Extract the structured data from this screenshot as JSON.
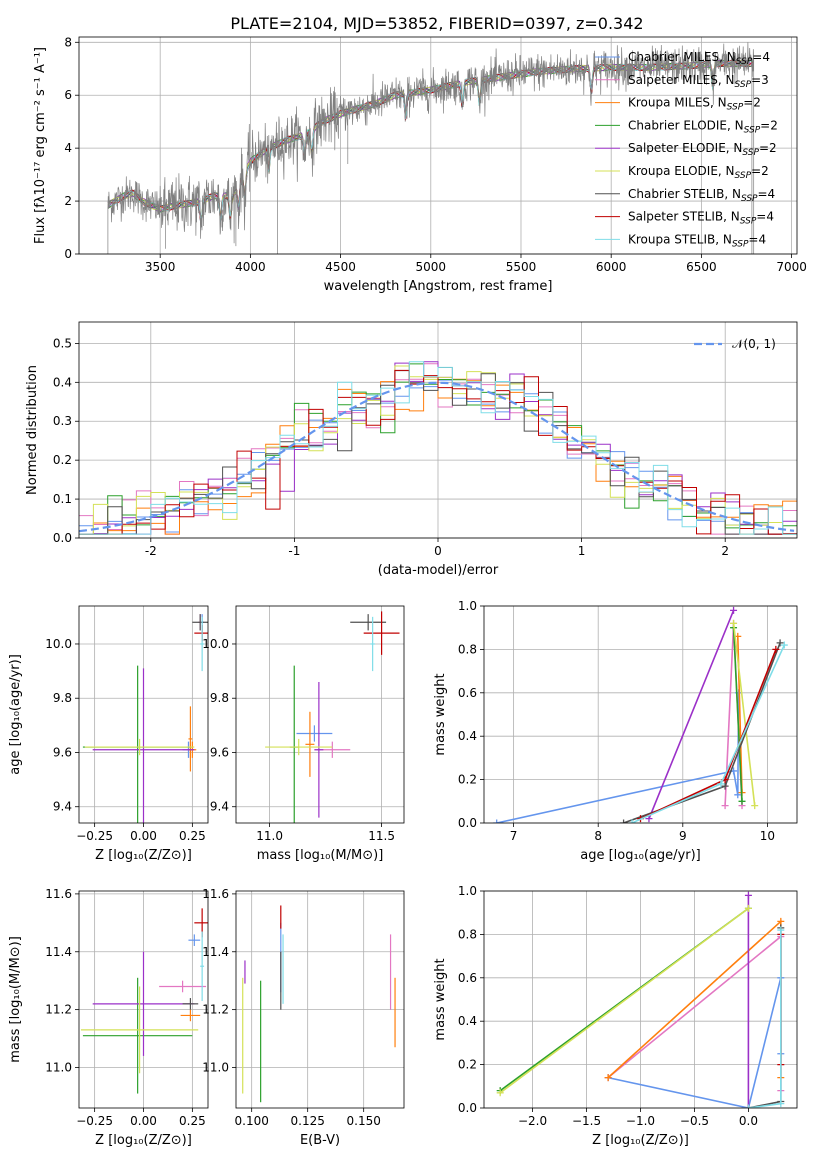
{
  "figure_title": "PLATE=2104, MJD=53852, FIBERID=0397, z=0.342",
  "models": [
    {
      "imf": "Chabrier",
      "lib": "MILES",
      "n": "4",
      "color": "#6495ed"
    },
    {
      "imf": "Salpeter",
      "lib": "MILES",
      "n": "3",
      "color": "#e377c2"
    },
    {
      "imf": "Kroupa",
      "lib": "MILES",
      "n": "2",
      "color": "#ff7f0e"
    },
    {
      "imf": "Chabrier",
      "lib": "ELODIE",
      "n": "2",
      "color": "#2ca02c"
    },
    {
      "imf": "Salpeter",
      "lib": "ELODIE",
      "n": "2",
      "color": "#9b30c8"
    },
    {
      "imf": "Kroupa",
      "lib": "ELODIE",
      "n": "2",
      "color": "#d4e157"
    },
    {
      "imf": "Chabrier",
      "lib": "STELIB",
      "n": "4",
      "color": "#505050"
    },
    {
      "imf": "Salpeter",
      "lib": "STELIB",
      "n": "4",
      "color": "#c00000"
    },
    {
      "imf": "Kroupa",
      "lib": "STELIB",
      "n": "4",
      "color": "#7fdde8"
    }
  ],
  "chart_data": [
    {
      "id": "spectrum",
      "type": "line",
      "xlabel": "wavelength [Angstrom, rest frame]",
      "ylabel": "Flux [fλ10⁻¹⁷ erg cm⁻² s⁻¹ A⁻¹]",
      "xlim": [
        3050,
        7030
      ],
      "ylim": [
        0,
        8.2
      ],
      "xticks": [
        3500,
        4000,
        4500,
        5000,
        5500,
        6000,
        6500,
        7000
      ],
      "yticks": [
        0,
        2,
        4,
        6,
        8
      ],
      "data_color": "#808080",
      "wave_range": [
        3210,
        6790
      ],
      "continuum": {
        "x": [
          3200,
          3300,
          3350,
          3400,
          3500,
          3600,
          3700,
          3800,
          3900,
          3950,
          4000,
          4100,
          4200,
          4300,
          4400,
          4500,
          4600,
          4700,
          4800,
          4900,
          5000,
          5200,
          5400,
          5600,
          5800,
          6000,
          6200,
          6400,
          6600,
          6800
        ],
        "y": [
          1.8,
          2.2,
          2.3,
          2.0,
          1.7,
          1.85,
          1.95,
          2.2,
          2.2,
          2.8,
          3.5,
          4.0,
          4.3,
          4.5,
          5.0,
          5.3,
          5.5,
          5.7,
          6.0,
          6.1,
          6.2,
          6.5,
          6.7,
          6.9,
          7.0,
          7.05,
          7.05,
          7.1,
          7.2,
          7.2
        ]
      }
    },
    {
      "id": "residuals",
      "type": "line",
      "xlabel": "(data-model)/error",
      "ylabel": "Normed distribution",
      "xlim": [
        -2.5,
        2.5
      ],
      "ylim": [
        0,
        0.555
      ],
      "xticks": [
        -2,
        -1,
        0,
        1,
        2
      ],
      "yticks": [
        0.0,
        0.1,
        0.2,
        0.3,
        0.4,
        0.5
      ],
      "bin_width": 0.1,
      "gaussian_label": "𝒩(0, 1)",
      "gaussian_color": "#6495ed"
    },
    {
      "id": "age-vs-z",
      "type": "scatter",
      "xlabel": "Z [log₁₀(Z/Z⊙)]",
      "ylabel": "age  [log₁₀(age/yr)]",
      "xlim": [
        -0.33,
        0.33
      ],
      "ylim": [
        9.34,
        10.14
      ],
      "xticks": [
        -0.25,
        0.0,
        0.25
      ],
      "xticklabels": [
        "−0.25",
        "0.00",
        "0.25"
      ],
      "yticks": [
        9.4,
        9.6,
        9.8,
        10.0
      ],
      "points": [
        {
          "x": 0.3,
          "y": 10.08,
          "xerr": 0.01,
          "yerr": 0.03,
          "m": 0
        },
        {
          "x": 0.23,
          "y": 9.61,
          "xerr": 0.03,
          "yerr": 0.03,
          "m": 0
        },
        {
          "x": 0.29,
          "y": 10.08,
          "xerr": 0.01,
          "yerr": 0.03,
          "m": 1
        },
        {
          "x": 0.24,
          "y": 9.61,
          "xerr": 0.02,
          "yerr": 0.03,
          "m": 1
        },
        {
          "x": 0.24,
          "y": 9.65,
          "xerr": 0.01,
          "yerr": 0.12,
          "m": 2
        },
        {
          "x": 0.25,
          "y": 9.61,
          "xerr": 0.02,
          "yerr": 0.03,
          "m": 2
        },
        {
          "x": -0.03,
          "y": 9.62,
          "xerr": 0.28,
          "yerr": 0.3,
          "m": 3
        },
        {
          "x": 0.0,
          "y": 9.61,
          "xerr": 0.26,
          "yerr": 0.3,
          "m": 4
        },
        {
          "x": -0.02,
          "y": 9.62,
          "xerr": 0.28,
          "yerr": 0.03,
          "m": 5
        },
        {
          "x": 0.29,
          "y": 10.08,
          "xerr": 0.04,
          "yerr": 0.03,
          "m": 6
        },
        {
          "x": 0.3,
          "y": 10.04,
          "xerr": 0.04,
          "yerr": 0.03,
          "m": 7
        },
        {
          "x": 0.3,
          "y": 10.0,
          "xerr": 0.01,
          "yerr": 0.1,
          "m": 8
        }
      ]
    },
    {
      "id": "age-vs-mass",
      "type": "scatter",
      "xlabel": "mass [log₁₀(M/M⊙)]",
      "ylabel": "",
      "xlim": [
        10.85,
        11.6
      ],
      "ylim": [
        9.34,
        10.14
      ],
      "xticks": [
        11.0,
        11.5
      ],
      "xticklabels": [
        "11.0",
        "11.5"
      ],
      "yticks": [
        9.4,
        9.6,
        9.8,
        10.0
      ],
      "points": [
        {
          "x": 11.2,
          "y": 9.67,
          "xerr": 0.08,
          "yerr": 0.03,
          "m": 0
        },
        {
          "x": 11.28,
          "y": 9.61,
          "xerr": 0.08,
          "yerr": 0.03,
          "m": 1
        },
        {
          "x": 11.18,
          "y": 9.63,
          "xerr": 0.02,
          "yerr": 0.12,
          "m": 2
        },
        {
          "x": 11.11,
          "y": 9.62,
          "xerr": 0.02,
          "yerr": 0.3,
          "m": 3
        },
        {
          "x": 11.22,
          "y": 9.61,
          "xerr": 0.02,
          "yerr": 0.25,
          "m": 4
        },
        {
          "x": 11.13,
          "y": 9.62,
          "xerr": 0.15,
          "yerr": 0.03,
          "m": 5
        },
        {
          "x": 11.44,
          "y": 10.08,
          "xerr": 0.08,
          "yerr": 0.03,
          "m": 6
        },
        {
          "x": 11.5,
          "y": 10.04,
          "xerr": 0.08,
          "yerr": 0.08,
          "m": 7
        },
        {
          "x": 11.46,
          "y": 10.0,
          "xerr": 0.01,
          "yerr": 0.1,
          "m": 8
        }
      ]
    },
    {
      "id": "massweight-vs-age",
      "type": "line",
      "xlabel": "age  [log₁₀(age/yr)]",
      "ylabel": "mass weight",
      "xlim": [
        6.65,
        10.35
      ],
      "ylim": [
        0,
        1.0
      ],
      "xticks": [
        7,
        8,
        9,
        10
      ],
      "xticklabels": [
        "7",
        "8",
        "9",
        "10"
      ],
      "yticks": [
        0.0,
        0.2,
        0.4,
        0.6,
        0.8,
        1.0
      ],
      "series": [
        {
          "m": 0,
          "x": [
            6.8,
            9.6,
            9.65,
            9.66
          ],
          "y": [
            0.0,
            0.24,
            0.13,
            0.6
          ]
        },
        {
          "m": 1,
          "x": [
            9.5,
            9.6,
            9.7
          ],
          "y": [
            0.08,
            0.92,
            0.08
          ]
        },
        {
          "m": 2,
          "x": [
            9.65,
            9.7
          ],
          "y": [
            0.86,
            0.14
          ]
        },
        {
          "m": 3,
          "x": [
            9.6,
            9.7
          ],
          "y": [
            0.9,
            0.1
          ]
        },
        {
          "m": 4,
          "x": [
            8.6,
            9.6
          ],
          "y": [
            0.02,
            0.98
          ]
        },
        {
          "m": 5,
          "x": [
            9.6,
            9.85
          ],
          "y": [
            0.92,
            0.08
          ]
        },
        {
          "m": 6,
          "x": [
            8.3,
            9.5,
            10.15
          ],
          "y": [
            0.0,
            0.17,
            0.83
          ]
        },
        {
          "m": 7,
          "x": [
            8.5,
            9.5,
            10.1
          ],
          "y": [
            0.02,
            0.2,
            0.8
          ]
        },
        {
          "m": 8,
          "x": [
            8.4,
            9.45,
            10.2
          ],
          "y": [
            0.0,
            0.18,
            0.82
          ]
        }
      ]
    },
    {
      "id": "mass-vs-z",
      "type": "scatter",
      "xlabel": "Z [log₁₀(Z/Z⊙)]",
      "ylabel": "mass [log₁₀(M/M⊙)]",
      "xlim": [
        -0.33,
        0.33
      ],
      "ylim": [
        10.86,
        11.61
      ],
      "xticks": [
        -0.25,
        0.0,
        0.25
      ],
      "xticklabels": [
        "−0.25",
        "0.00",
        "0.25"
      ],
      "yticks": [
        11.0,
        11.2,
        11.4,
        11.6
      ],
      "points": [
        {
          "x": 0.26,
          "y": 11.44,
          "xerr": 0.03,
          "yerr": 0.02,
          "m": 0
        },
        {
          "x": 0.2,
          "y": 11.28,
          "xerr": 0.12,
          "yerr": 0.02,
          "m": 1
        },
        {
          "x": 0.24,
          "y": 11.18,
          "xerr": 0.05,
          "yerr": 0.02,
          "m": 2
        },
        {
          "x": -0.03,
          "y": 11.11,
          "xerr": 0.28,
          "yerr": 0.2,
          "m": 3
        },
        {
          "x": 0.0,
          "y": 11.22,
          "xerr": 0.26,
          "yerr": 0.18,
          "m": 4
        },
        {
          "x": -0.02,
          "y": 11.13,
          "xerr": 0.3,
          "yerr": 0.15,
          "m": 5
        },
        {
          "x": 0.24,
          "y": 11.22,
          "xerr": 0.04,
          "yerr": 0.02,
          "m": 6
        },
        {
          "x": 0.3,
          "y": 11.5,
          "xerr": 0.04,
          "yerr": 0.05,
          "m": 7
        },
        {
          "x": 0.3,
          "y": 11.35,
          "xerr": 0.01,
          "yerr": 0.12,
          "m": 8
        }
      ]
    },
    {
      "id": "mass-vs-ebv",
      "type": "scatter",
      "xlabel": "E(B-V)",
      "ylabel": "",
      "xlim": [
        0.093,
        0.168
      ],
      "ylim": [
        10.86,
        11.61
      ],
      "xticks": [
        0.1,
        0.125,
        0.15
      ],
      "xticklabels": [
        "0.100",
        "0.125",
        "0.150"
      ],
      "yticks": [
        11.0,
        11.2,
        11.4,
        11.6
      ],
      "points": [
        {
          "x": 0.113,
          "y": 11.38,
          "xerr": 0.0,
          "yerr": 0.12,
          "m": 0
        },
        {
          "x": 0.162,
          "y": 11.33,
          "xerr": 0.0,
          "yerr": 0.13,
          "m": 1
        },
        {
          "x": 0.164,
          "y": 11.19,
          "xerr": 0.0,
          "yerr": 0.12,
          "m": 2
        },
        {
          "x": 0.104,
          "y": 11.09,
          "xerr": 0.0,
          "yerr": 0.21,
          "m": 3
        },
        {
          "x": 0.097,
          "y": 11.33,
          "xerr": 0.0,
          "yerr": 0.04,
          "m": 4
        },
        {
          "x": 0.096,
          "y": 11.11,
          "xerr": 0.0,
          "yerr": 0.2,
          "m": 5
        },
        {
          "x": 0.113,
          "y": 11.3,
          "xerr": 0.0,
          "yerr": 0.1,
          "m": 6
        },
        {
          "x": 0.113,
          "y": 11.52,
          "xerr": 0.0,
          "yerr": 0.04,
          "m": 7
        },
        {
          "x": 0.114,
          "y": 11.34,
          "xerr": 0.0,
          "yerr": 0.12,
          "m": 8
        }
      ]
    },
    {
      "id": "massweight-vs-z",
      "type": "line",
      "xlabel": "Z [log₁₀(Z/Z⊙)]",
      "ylabel": "mass weight",
      "xlim": [
        -2.45,
        0.45
      ],
      "ylim": [
        0,
        1.0
      ],
      "xticks": [
        -2.0,
        -1.5,
        -1.0,
        -0.5,
        0.0
      ],
      "xticklabels": [
        "−2.0",
        "−1.5",
        "−1.0",
        "−0.5",
        "0.0"
      ],
      "yticks": [
        0.0,
        0.2,
        0.4,
        0.6,
        0.8,
        1.0
      ],
      "series": [
        {
          "m": 0,
          "x": [
            -1.3,
            0.0,
            0.3,
            0.3
          ],
          "y": [
            0.14,
            0.0,
            0.6,
            0.25
          ]
        },
        {
          "m": 1,
          "x": [
            -1.3,
            0.3,
            0.3
          ],
          "y": [
            0.14,
            0.79,
            0.08
          ]
        },
        {
          "m": 2,
          "x": [
            -1.3,
            0.3,
            0.3
          ],
          "y": [
            0.14,
            0.86,
            0.14
          ]
        },
        {
          "m": 3,
          "x": [
            -2.3,
            0.0
          ],
          "y": [
            0.08,
            0.92
          ]
        },
        {
          "m": 4,
          "x": [
            0.0,
            0.0
          ],
          "y": [
            0.0,
            0.98
          ]
        },
        {
          "m": 5,
          "x": [
            -2.3,
            0.0
          ],
          "y": [
            0.07,
            0.92
          ]
        },
        {
          "m": 6,
          "x": [
            0.0,
            0.3,
            0.3
          ],
          "y": [
            0.0,
            0.03,
            0.83
          ]
        },
        {
          "m": 7,
          "x": [
            0.3,
            0.3
          ],
          "y": [
            0.2,
            0.8
          ]
        },
        {
          "m": 8,
          "x": [
            0.0,
            0.3,
            0.3
          ],
          "y": [
            0.0,
            0.02,
            0.82
          ]
        }
      ]
    }
  ]
}
